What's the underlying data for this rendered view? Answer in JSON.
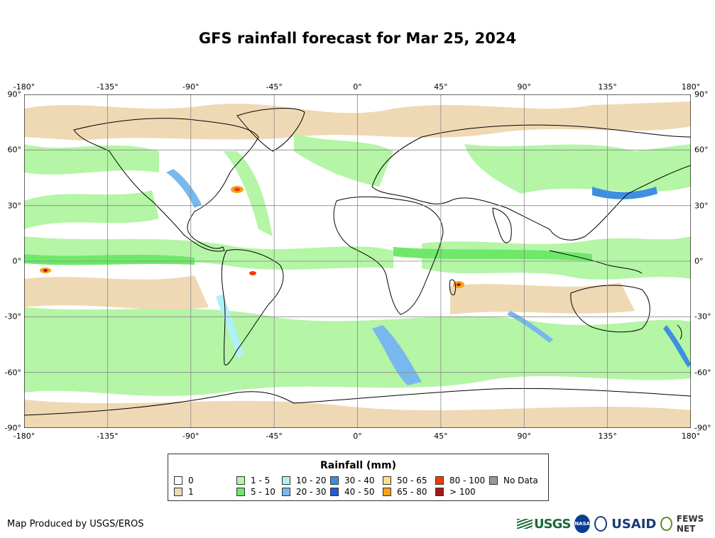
{
  "title": "GFS rainfall forecast for Mar 25, 2024",
  "axes": {
    "lon_ticks": [
      "-180°",
      "-135°",
      "-90°",
      "-45°",
      "0°",
      "45°",
      "90°",
      "135°",
      "180°"
    ],
    "lat_ticks": [
      "90°",
      "60°",
      "30°",
      "0°",
      "-30°",
      "-60°",
      "-90°"
    ],
    "lon_values": [
      -180,
      -135,
      -90,
      -45,
      0,
      45,
      90,
      135,
      180
    ],
    "lat_values": [
      90,
      60,
      30,
      0,
      -30,
      -60,
      -90
    ]
  },
  "legend": {
    "title": "Rainfall (mm)",
    "items": [
      {
        "label": "0",
        "color": "#ffffff"
      },
      {
        "label": "1",
        "color": "#efd9b4"
      },
      {
        "label": "1 - 5",
        "color": "#b4f5a6"
      },
      {
        "label": "5 - 10",
        "color": "#6fe86a"
      },
      {
        "label": "10 - 20",
        "color": "#b0f0f8"
      },
      {
        "label": "20 - 30",
        "color": "#78b8ee"
      },
      {
        "label": "30 - 40",
        "color": "#3f8fe0"
      },
      {
        "label": "40 - 50",
        "color": "#1d5fd0"
      },
      {
        "label": "50 - 65",
        "color": "#f8e08a"
      },
      {
        "label": "65 - 80",
        "color": "#f4a21a"
      },
      {
        "label": "80 - 100",
        "color": "#f03a0a"
      },
      {
        "label": "> 100",
        "color": "#a01a1a"
      },
      {
        "label": "No Data",
        "color": "#999999"
      }
    ]
  },
  "credit": "Map Produced by USGS/EROS",
  "logos": {
    "usgs": "USGS",
    "nasa": "NASA",
    "usaid": "USAID",
    "fews": "FEWS NET"
  }
}
